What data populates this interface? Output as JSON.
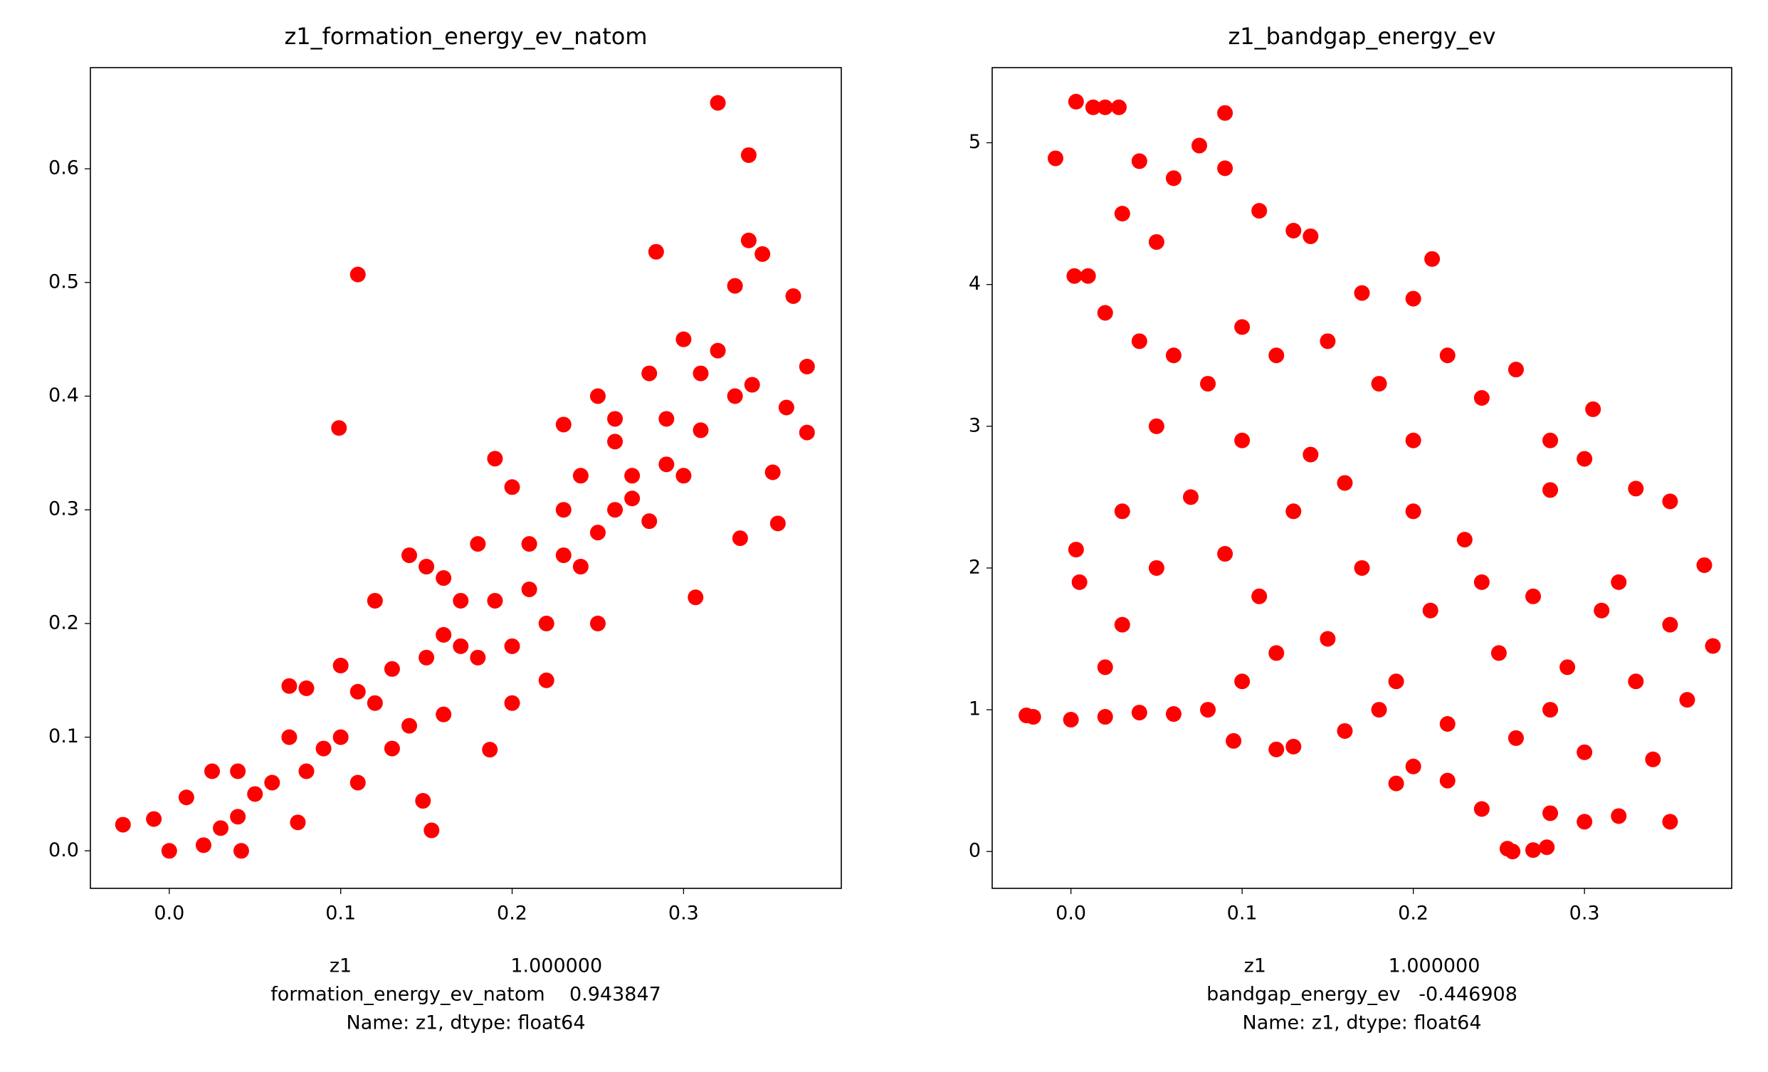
{
  "chart_data": [
    {
      "type": "scatter",
      "title": "z1_formation_energy_ev_natom",
      "xlabel": [
        "z1                          1.000000",
        "formation_energy_ev_natom    0.943847",
        "Name: z1, dtype: float64"
      ],
      "color": "#ff0000",
      "xlim": [
        -0.046,
        0.392
      ],
      "ylim": [
        -0.033,
        0.689
      ],
      "xticks": [
        {
          "value": 0,
          "label": "0.0"
        },
        0.1,
        0.2,
        0.3
      ],
      "yticks": [
        {
          "value": 0,
          "label": "0.0"
        },
        0.1,
        0.2,
        0.3,
        0.4,
        0.5,
        0.6
      ],
      "x": [
        0.32,
        0.338,
        0.11,
        0.099,
        0.284,
        0.338,
        0.346,
        0.33,
        0.364,
        0.372,
        0.372,
        0.352,
        0.355,
        0.333,
        0.307,
        0.187,
        0.148,
        0.153,
        -0.027,
        -0.009,
        0.0,
        0.02,
        0.042,
        0.025,
        0.04,
        0.01,
        0.075,
        0.07,
        0.08,
        0.1,
        0.11,
        0.13,
        0.15,
        0.12,
        0.14,
        0.19,
        0.2,
        0.23,
        0.25,
        0.26,
        0.28,
        0.3,
        0.31,
        0.29,
        0.32,
        0.34,
        0.36,
        0.26,
        0.24,
        0.22,
        0.2,
        0.18,
        0.16,
        0.17,
        0.21,
        0.23,
        0.27,
        0.25,
        0.2,
        0.22,
        0.16,
        0.14,
        0.12,
        0.1,
        0.09,
        0.08,
        0.06,
        0.05,
        0.04,
        0.03,
        0.07,
        0.11,
        0.13,
        0.15,
        0.17,
        0.19,
        0.21,
        0.23,
        0.25,
        0.27,
        0.29,
        0.31,
        0.33,
        0.28,
        0.3,
        0.24,
        0.26,
        0.18,
        0.16
      ],
      "values": [
        0.658,
        0.612,
        0.507,
        0.372,
        0.527,
        0.537,
        0.525,
        0.497,
        0.488,
        0.426,
        0.368,
        0.333,
        0.288,
        0.275,
        0.223,
        0.089,
        0.044,
        0.018,
        0.023,
        0.028,
        0.0,
        0.005,
        0.0,
        0.07,
        0.07,
        0.047,
        0.025,
        0.145,
        0.143,
        0.163,
        0.06,
        0.09,
        0.25,
        0.22,
        0.26,
        0.345,
        0.32,
        0.375,
        0.4,
        0.36,
        0.42,
        0.45,
        0.42,
        0.38,
        0.44,
        0.41,
        0.39,
        0.3,
        0.25,
        0.2,
        0.18,
        0.17,
        0.19,
        0.22,
        0.27,
        0.3,
        0.33,
        0.2,
        0.13,
        0.15,
        0.12,
        0.11,
        0.13,
        0.1,
        0.09,
        0.07,
        0.06,
        0.05,
        0.03,
        0.02,
        0.1,
        0.14,
        0.16,
        0.17,
        0.18,
        0.22,
        0.23,
        0.26,
        0.28,
        0.31,
        0.34,
        0.37,
        0.4,
        0.29,
        0.33,
        0.33,
        0.38,
        0.27,
        0.24
      ]
    },
    {
      "type": "scatter",
      "title": "z1_bandgap_energy_ev",
      "xlabel": [
        "z1                    1.000000",
        "bandgap_energy_ev   -0.446908",
        "Name: z1, dtype: float64"
      ],
      "color": "#ff0000",
      "xlim": [
        -0.046,
        0.386
      ],
      "ylim": [
        -0.26,
        5.53
      ],
      "xticks": [
        {
          "value": 0,
          "label": "0.0"
        },
        0.1,
        0.2,
        0.3
      ],
      "yticks": [
        0,
        1,
        2,
        3,
        4,
        5
      ],
      "x": [
        0.003,
        0.013,
        0.02,
        0.028,
        0.09,
        -0.009,
        0.075,
        0.04,
        0.06,
        0.09,
        0.03,
        0.05,
        0.11,
        0.13,
        0.14,
        0.002,
        0.01,
        0.211,
        0.17,
        0.02,
        0.04,
        0.06,
        0.08,
        0.1,
        0.12,
        0.15,
        0.18,
        0.2,
        0.22,
        0.24,
        0.26,
        0.28,
        0.305,
        0.3,
        0.28,
        0.33,
        0.35,
        0.37,
        0.375,
        0.36,
        0.35,
        0.34,
        0.32,
        0.3,
        0.28,
        0.27,
        0.255,
        0.258,
        0.278,
        0.24,
        0.22,
        0.2,
        0.19,
        0.16,
        0.13,
        0.12,
        0.095,
        0.06,
        0.04,
        0.02,
        0.0,
        -0.026,
        -0.022,
        0.003,
        0.005,
        0.02,
        0.03,
        0.05,
        0.07,
        0.09,
        0.11,
        0.13,
        0.15,
        0.17,
        0.19,
        0.21,
        0.23,
        0.25,
        0.27,
        0.29,
        0.31,
        0.33,
        0.35,
        0.1,
        0.12,
        0.14,
        0.16,
        0.18,
        0.2,
        0.22,
        0.24,
        0.26,
        0.28,
        0.3,
        0.32,
        0.08,
        0.05,
        0.03,
        0.1,
        0.2
      ],
      "values": [
        5.29,
        5.25,
        5.25,
        5.25,
        5.21,
        4.89,
        4.98,
        4.87,
        4.75,
        4.82,
        4.5,
        4.3,
        4.52,
        4.38,
        4.34,
        4.06,
        4.06,
        4.18,
        3.94,
        3.8,
        3.6,
        3.5,
        3.3,
        3.7,
        3.5,
        3.6,
        3.3,
        3.9,
        3.5,
        3.2,
        3.4,
        2.9,
        3.12,
        2.77,
        2.55,
        2.56,
        2.47,
        2.02,
        1.45,
        1.07,
        0.21,
        0.65,
        0.25,
        0.21,
        0.27,
        0.01,
        0.02,
        0.0,
        0.03,
        0.3,
        0.5,
        0.6,
        0.48,
        0.85,
        0.74,
        0.72,
        0.78,
        0.97,
        0.98,
        0.95,
        0.93,
        0.96,
        0.95,
        2.13,
        1.9,
        1.3,
        1.6,
        2.0,
        2.5,
        2.1,
        1.8,
        2.4,
        1.5,
        2.0,
        1.2,
        1.7,
        2.2,
        1.4,
        1.8,
        1.3,
        1.7,
        1.2,
        1.6,
        1.2,
        1.4,
        2.8,
        2.6,
        1.0,
        2.4,
        0.9,
        1.9,
        0.8,
        1.0,
        0.7,
        1.9,
        1.0,
        3.0,
        2.4,
        2.9,
        2.9
      ]
    }
  ]
}
